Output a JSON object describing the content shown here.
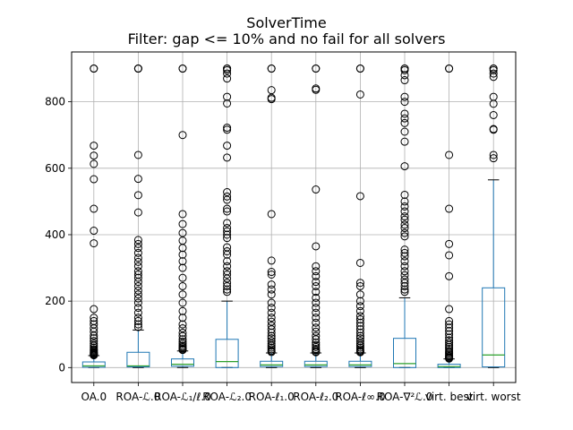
{
  "chart_data": {
    "type": "box",
    "title": "SolverTime",
    "subtitle": "Filter: gap <= 10% and no fail for all solvers",
    "xlabel": "",
    "ylabel": "",
    "ylim": [
      -45,
      950
    ],
    "yticks": [
      0,
      200,
      400,
      600,
      800
    ],
    "grid": true,
    "colors": {
      "box": "#1f77b4",
      "median": "#2ca02c",
      "whisker": "#000000",
      "flier": "#000000",
      "grid": "#b0b0b0"
    },
    "series": [
      {
        "label": "OA.0",
        "q1": 1,
        "median": 5,
        "q3": 17,
        "whisker_low": 0,
        "whisker_high": 36,
        "fliers": [
          900,
          900,
          668,
          638,
          613,
          567,
          478,
          412,
          374,
          176,
          150,
          140,
          130,
          118,
          108,
          96,
          88,
          80,
          72,
          66,
          60,
          55,
          52,
          49,
          46,
          44,
          42,
          40,
          38,
          37
        ]
      },
      {
        "label": "ROA-ℒ.0",
        "q1": 2,
        "median": 5,
        "q3": 46,
        "whisker_low": 0,
        "whisker_high": 113,
        "fliers": [
          900,
          900,
          900,
          640,
          568,
          519,
          467,
          384,
          372,
          360,
          345,
          330,
          318,
          305,
          290,
          280,
          270,
          258,
          245,
          232,
          220,
          208,
          195,
          180,
          165,
          150,
          140,
          130,
          122
        ]
      },
      {
        "label": "ROA-ℒ₁/ℓ.0",
        "q1": 4,
        "median": 10,
        "q3": 26,
        "whisker_low": 0,
        "whisker_high": 50,
        "fliers": [
          900,
          900,
          700,
          462,
          432,
          405,
          382,
          360,
          340,
          320,
          300,
          270,
          245,
          220,
          195,
          170,
          150,
          130,
          118,
          105,
          95,
          85,
          78,
          72,
          66,
          62,
          58,
          55,
          53
        ]
      },
      {
        "label": "ROA-ℒ₂.0",
        "q1": 0,
        "median": 18,
        "q3": 85,
        "whisker_low": 0,
        "whisker_high": 200,
        "fliers": [
          900,
          900,
          895,
          885,
          870,
          815,
          795,
          722,
          716,
          668,
          632,
          528,
          515,
          505,
          478,
          470,
          435,
          420,
          410,
          400,
          390,
          362,
          350,
          340,
          320,
          305,
          290,
          280,
          268,
          255,
          245,
          235,
          228
        ]
      },
      {
        "label": "ROA-ℓ₁.0",
        "q1": 3,
        "median": 8,
        "q3": 19,
        "whisker_low": 0,
        "whisker_high": 44,
        "fliers": [
          900,
          900,
          835,
          812,
          808,
          462,
          322,
          288,
          280,
          250,
          235,
          220,
          195,
          180,
          165,
          150,
          138,
          126,
          115,
          105,
          95,
          88,
          80,
          72,
          66,
          60,
          55,
          50,
          47
        ]
      },
      {
        "label": "ROA-ℓ₂.0",
        "q1": 3,
        "median": 8,
        "q3": 19,
        "whisker_low": 0,
        "whisker_high": 44,
        "fliers": [
          900,
          900,
          840,
          836,
          536,
          365,
          305,
          290,
          275,
          258,
          245,
          228,
          210,
          195,
          180,
          165,
          150,
          135,
          120,
          108,
          95,
          85,
          75,
          68,
          62,
          56,
          52,
          48,
          46
        ]
      },
      {
        "label": "ROA-ℓ∞.0",
        "q1": 3,
        "median": 8,
        "q3": 19,
        "whisker_low": 0,
        "whisker_high": 44,
        "fliers": [
          900,
          900,
          822,
          516,
          315,
          255,
          245,
          220,
          200,
          185,
          170,
          155,
          145,
          135,
          125,
          115,
          105,
          95,
          88,
          80,
          72,
          66,
          60,
          55,
          51,
          48,
          46
        ]
      },
      {
        "label": "ROA-∇²ℒ.0",
        "q1": 0,
        "median": 12,
        "q3": 88,
        "whisker_low": 0,
        "whisker_high": 210,
        "fliers": [
          900,
          900,
          895,
          880,
          865,
          815,
          800,
          764,
          750,
          736,
          710,
          680,
          606,
          520,
          500,
          485,
          470,
          455,
          445,
          430,
          420,
          405,
          395,
          355,
          345,
          335,
          320,
          305,
          290,
          278,
          265,
          255,
          245,
          235,
          228
        ]
      },
      {
        "label": "virt. best",
        "q1": 0,
        "median": 3,
        "q3": 10,
        "whisker_low": 0,
        "whisker_high": 26,
        "fliers": [
          900,
          900,
          640,
          478,
          372,
          338,
          275,
          176,
          140,
          130,
          120,
          110,
          100,
          90,
          82,
          75,
          68,
          62,
          56,
          50,
          46,
          42,
          38,
          34,
          31,
          29,
          27
        ]
      },
      {
        "label": "virt. worst",
        "q1": 2,
        "median": 38,
        "q3": 240,
        "whisker_low": 0,
        "whisker_high": 565,
        "fliers": [
          900,
          900,
          895,
          885,
          875,
          815,
          794,
          760,
          718,
          716,
          640,
          630
        ]
      }
    ]
  }
}
